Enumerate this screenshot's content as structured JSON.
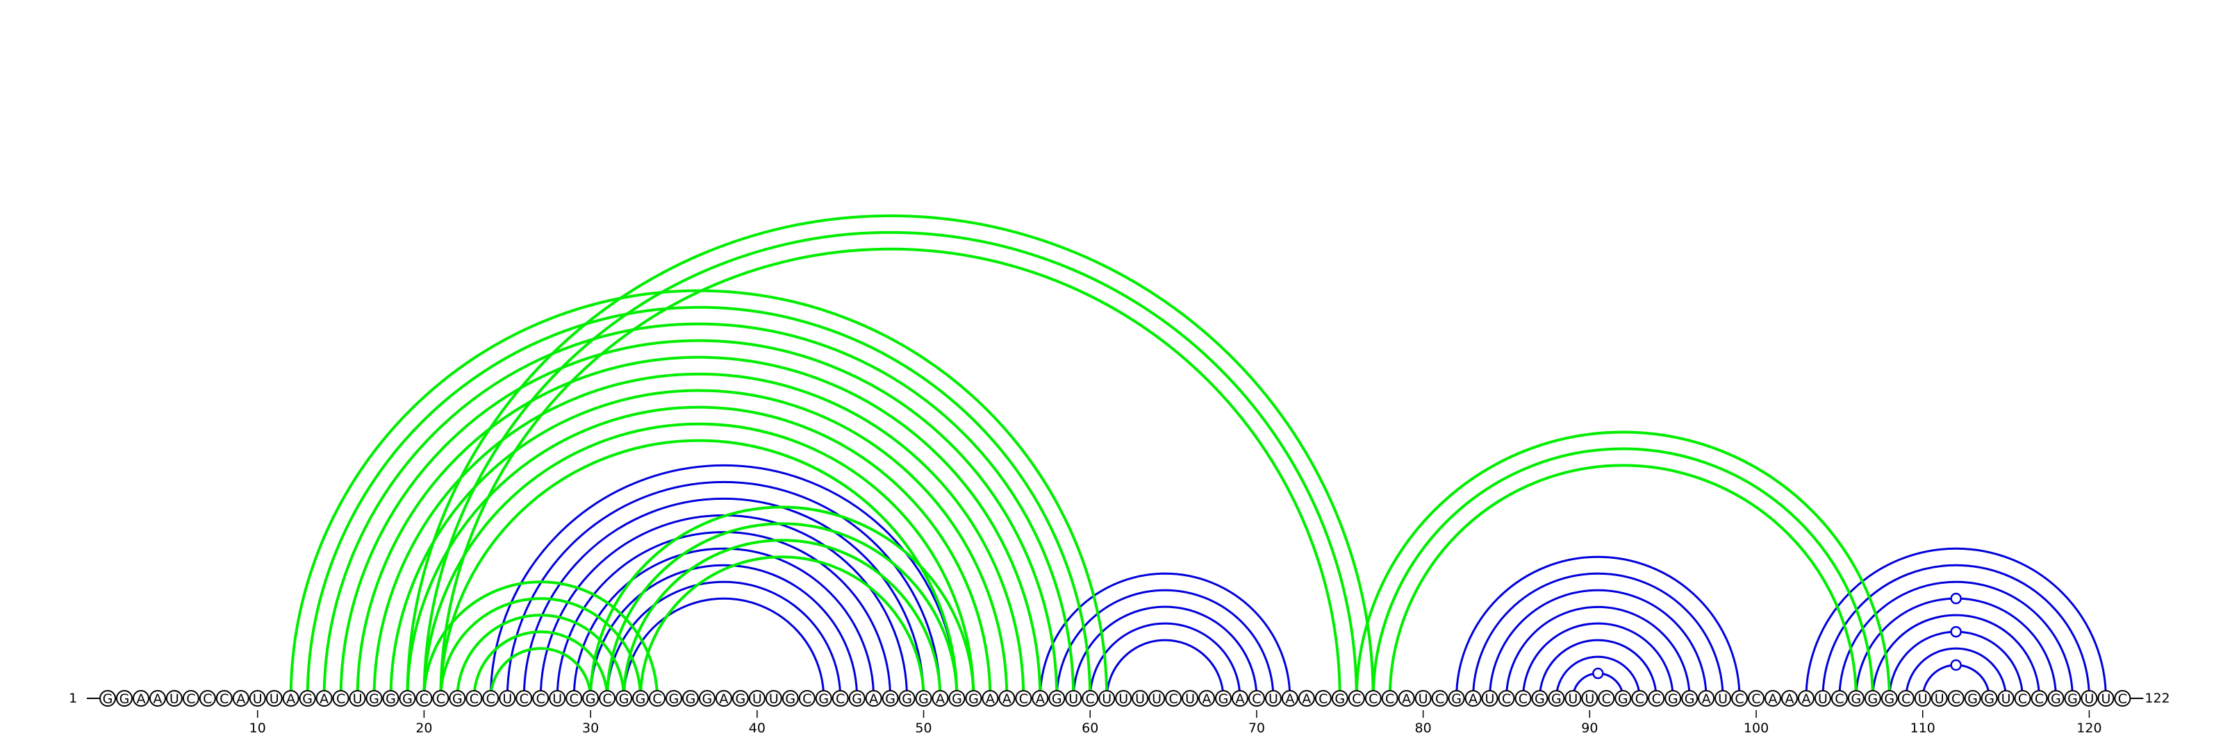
{
  "chart_data": {
    "type": "arc-diagram",
    "title": "",
    "sequence": "GGAAUCCCAUUAGACUGGGCCGCCUCCUCGCGGCGGGAGUUGCGCGAGGGAGGAACAGUCUUUUCUAGACUAACGCCCAUCGAUCCGGUUCGCCGGAUCCAAAUCGGGCUUCGGUCCGGUUC",
    "length": 122,
    "start_label": "1",
    "end_label": "122",
    "tick_labels": [
      "10",
      "20",
      "30",
      "40",
      "50",
      "60",
      "70",
      "80",
      "90",
      "100",
      "110",
      "120"
    ],
    "colors": {
      "pair": "#0000dd",
      "pseudoknot": "#00ee00"
    },
    "helices": [
      {
        "type": "pair",
        "i": 24,
        "j": 52,
        "n": 9
      },
      {
        "type": "pair",
        "i": 57,
        "j": 72,
        "n": 5
      },
      {
        "type": "pair",
        "i": 82,
        "j": 99,
        "n": 8
      },
      {
        "type": "pair",
        "i": 103,
        "j": 121,
        "n": 8
      },
      {
        "type": "pseudoknot",
        "i": 12,
        "j": 61,
        "n": 10
      },
      {
        "type": "pseudoknot",
        "i": 19,
        "j": 77,
        "n": 3
      },
      {
        "type": "pseudoknot",
        "i": 20,
        "j": 34,
        "n": 5
      },
      {
        "type": "pseudoknot",
        "i": 30,
        "j": 53,
        "n": 4
      },
      {
        "type": "pseudoknot",
        "i": 76,
        "j": 108,
        "n": 3
      }
    ],
    "markers": [
      {
        "position": 90,
        "arc_index": 0
      },
      {
        "position": 111,
        "arc_index": 0
      },
      {
        "position": 111,
        "arc_index": 2
      },
      {
        "position": 111,
        "arc_index": 4
      }
    ]
  }
}
